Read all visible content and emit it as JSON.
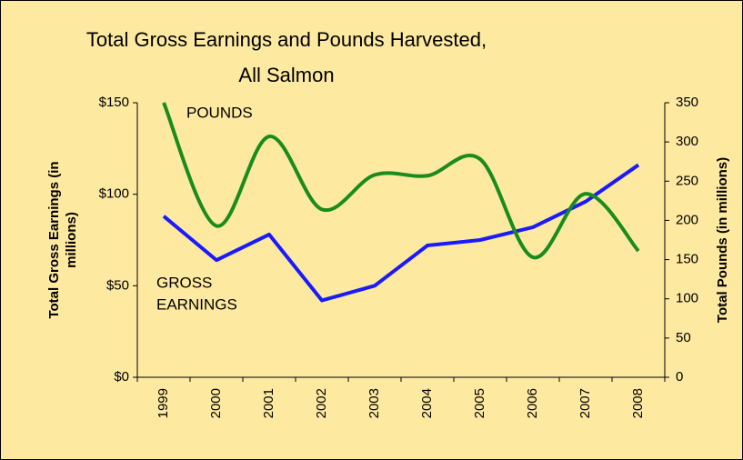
{
  "chart_data": {
    "type": "line",
    "title": [
      "Total Gross Earnings and Pounds Harvested,",
      "All Salmon"
    ],
    "y_label": [
      "Total Gross Earnings (in",
      "millions)"
    ],
    "y2_label": "Total Pounds (in millions)",
    "annotations": [
      {
        "lines": [
          "POUNDS"
        ]
      },
      {
        "lines": [
          "GROSS",
          "EARNINGS"
        ]
      }
    ],
    "categories": [
      "1999",
      "2000",
      "2001",
      "2002",
      "2003",
      "2004",
      "2005",
      "2006",
      "2007",
      "2008"
    ],
    "series": [
      {
        "color": "#1a1aff",
        "values": [
          88,
          64,
          78,
          42,
          50,
          72,
          75,
          82,
          96,
          116
        ]
      },
      {
        "color": "#1a8c1a",
        "axis": "y2",
        "smooth": true,
        "values": [
          350,
          193,
          307,
          214,
          258,
          257,
          278,
          153,
          234,
          161
        ]
      }
    ],
    "ylim": [
      0,
      150
    ],
    "yticks": [
      {
        "value": 0,
        "label": "$0"
      },
      {
        "value": 50,
        "label": "$50"
      },
      {
        "value": 100,
        "label": "$100"
      },
      {
        "value": 150,
        "label": "$150"
      }
    ],
    "y2lim": [
      0,
      350
    ],
    "y2ticks": [
      0,
      50,
      100,
      150,
      200,
      250,
      300,
      350
    ],
    "background": "#fee9a0"
  }
}
